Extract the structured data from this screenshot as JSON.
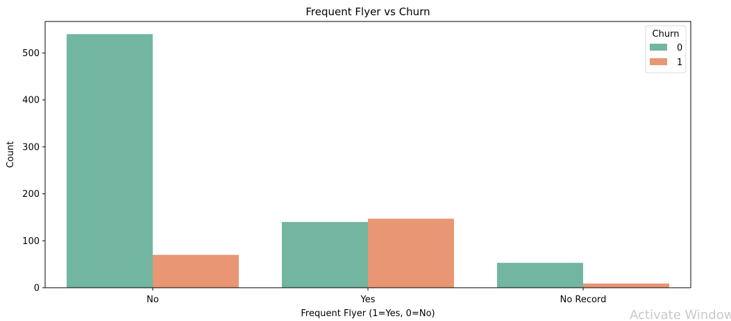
{
  "chart_data": {
    "type": "bar",
    "title": "Frequent Flyer vs Churn",
    "xlabel": "Frequent Flyer (1=Yes, 0=No)",
    "ylabel": "Count",
    "categories": [
      "No",
      "Yes",
      "No Record"
    ],
    "series": [
      {
        "name": "0",
        "color": "#72b6a1",
        "values": [
          540,
          140,
          53
        ]
      },
      {
        "name": "1",
        "color": "#e99675",
        "values": [
          70,
          147,
          9
        ]
      }
    ],
    "ylim": [
      0,
      567
    ],
    "yticks": [
      0,
      100,
      200,
      300,
      400,
      500
    ],
    "legend": {
      "title": "Churn",
      "placement": "top-right"
    },
    "grid": false
  },
  "overlay": {
    "watermark": "Activate Window"
  }
}
